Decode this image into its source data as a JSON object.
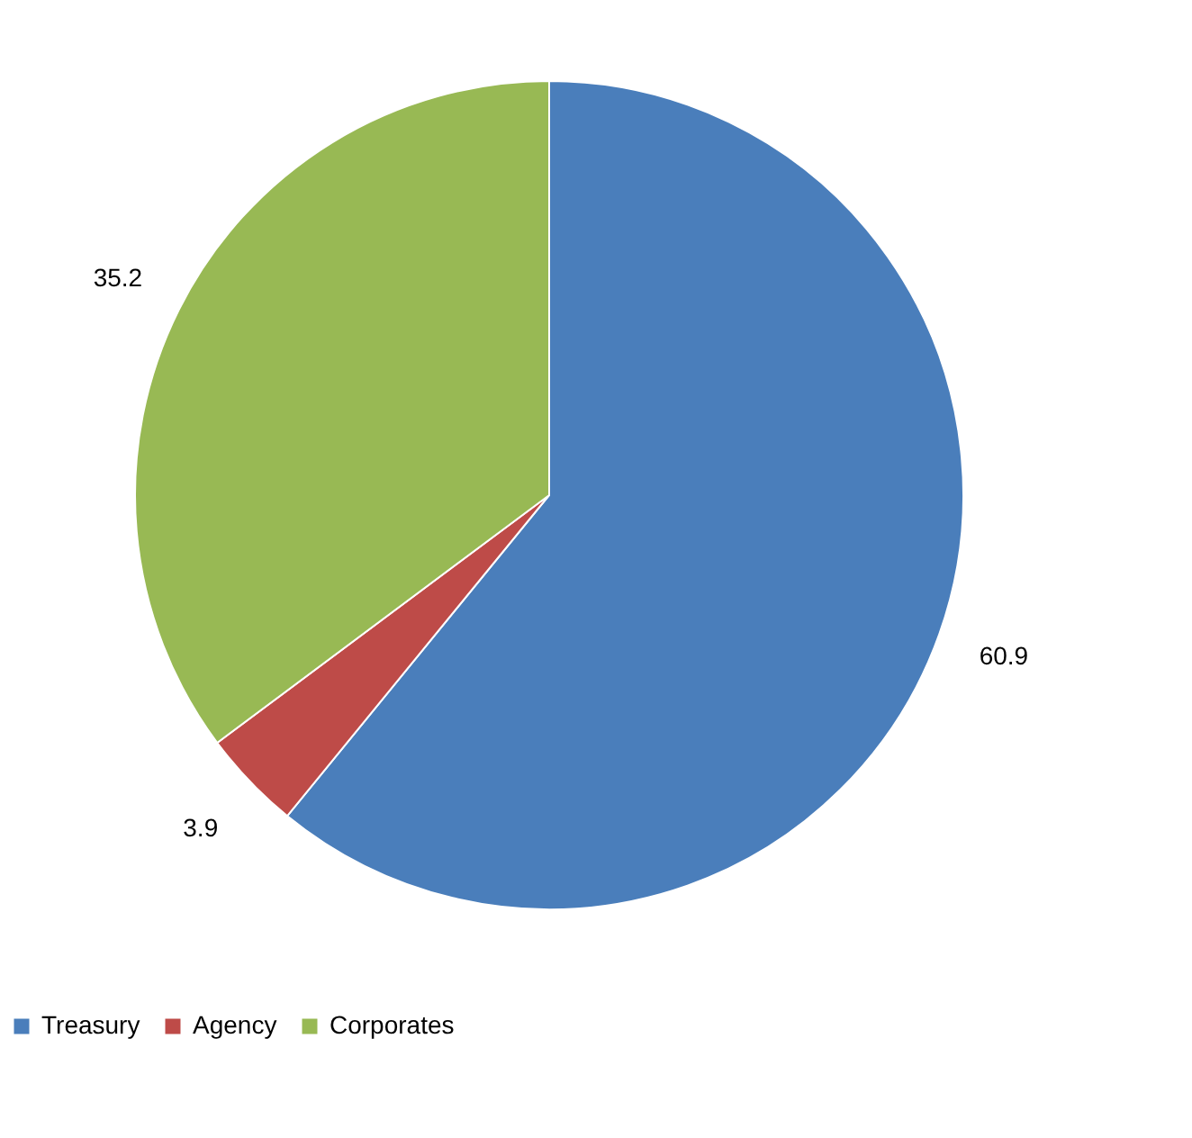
{
  "chart_data": {
    "type": "pie",
    "categories": [
      "Treasury",
      "Agency",
      "Corporates"
    ],
    "values": [
      60.9,
      3.9,
      35.2
    ],
    "colors": [
      "#4a7ebb",
      "#be4b48",
      "#98b954"
    ],
    "data_labels": true,
    "legend": "bottom"
  }
}
